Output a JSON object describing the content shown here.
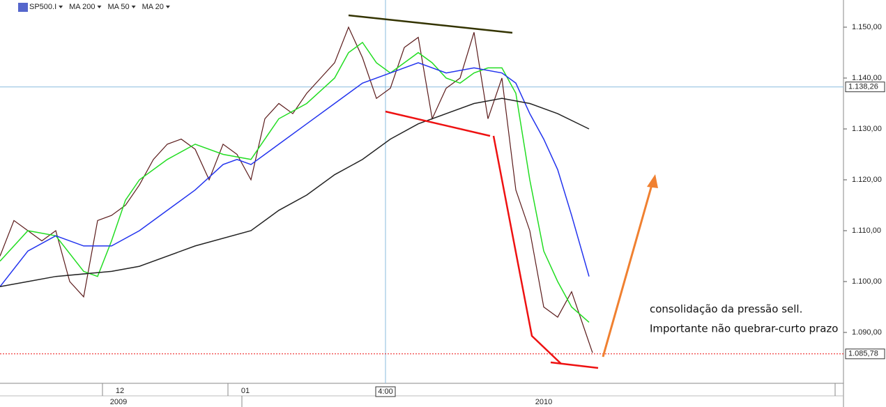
{
  "chart_data": {
    "type": "line",
    "legend": [
      "SP500.I",
      "MA 200",
      "MA 50",
      "MA 20"
    ],
    "series": [
      {
        "name": "SP500.I",
        "color": "#5a1a1a",
        "x": [
          0,
          2,
          4,
          6,
          8,
          10,
          12,
          14,
          16,
          18,
          20,
          22,
          24,
          26,
          28,
          30,
          32,
          34,
          36,
          38,
          40,
          42,
          44,
          46,
          48,
          50,
          52,
          54,
          56,
          58,
          60,
          62,
          64,
          66,
          68,
          70,
          72,
          74,
          76,
          78,
          80,
          82,
          84,
          85
        ],
        "values": [
          1105,
          1112,
          1110,
          1108,
          1110,
          1100,
          1097,
          1112,
          1113,
          1115,
          1119,
          1124,
          1127,
          1128,
          1126,
          1120,
          1127,
          1125,
          1120,
          1132,
          1135,
          1133,
          1137,
          1140,
          1143,
          1150,
          1144,
          1136,
          1138,
          1146,
          1148,
          1132,
          1138,
          1140,
          1149,
          1132,
          1140,
          1118,
          1110,
          1095,
          1093,
          1098,
          1090,
          1086
        ]
      },
      {
        "name": "MA 20",
        "color": "#22dd22",
        "x": [
          0,
          4,
          8,
          12,
          14,
          16,
          18,
          20,
          24,
          28,
          32,
          36,
          38,
          40,
          44,
          48,
          50,
          52,
          54,
          56,
          60,
          62,
          64,
          66,
          68,
          70,
          72,
          74,
          76,
          78,
          80,
          82,
          84.5
        ],
        "values": [
          1104,
          1110,
          1109,
          1102,
          1101,
          1108,
          1116,
          1120,
          1124,
          1127,
          1125,
          1124,
          1128,
          1132,
          1135,
          1140,
          1145,
          1147,
          1143,
          1141,
          1145,
          1143,
          1140,
          1139,
          1141,
          1142,
          1142,
          1137,
          1120,
          1106,
          1100,
          1095,
          1092
        ]
      },
      {
        "name": "MA 50",
        "color": "#2233ee",
        "x": [
          0,
          4,
          8,
          12,
          16,
          20,
          24,
          28,
          32,
          34,
          36,
          40,
          44,
          48,
          52,
          56,
          60,
          64,
          68,
          72,
          74,
          76,
          78,
          80,
          82,
          84.5
        ],
        "values": [
          1099,
          1106,
          1109,
          1107,
          1107,
          1110,
          1114,
          1118,
          1123,
          1124,
          1123,
          1127,
          1131,
          1135,
          1139,
          1141,
          1143,
          1141,
          1142,
          1141,
          1139,
          1133,
          1128,
          1122,
          1113,
          1101
        ]
      },
      {
        "name": "MA 200",
        "color": "#222222",
        "x": [
          0,
          4,
          8,
          16,
          20,
          28,
          36,
          40,
          44,
          48,
          52,
          56,
          60,
          64,
          68,
          72,
          76,
          80,
          84.5
        ],
        "values": [
          1099,
          1100,
          1101,
          1102,
          1103,
          1107,
          1110,
          1114,
          1117,
          1121,
          1124,
          1128,
          1131,
          1133,
          1135,
          1136,
          1135,
          1133,
          1130
        ]
      }
    ],
    "xlim": [
      0,
      121
    ],
    "xticks": [
      {
        "value": 17.2,
        "label": "12"
      },
      {
        "value": 35.2,
        "label": "01"
      }
    ],
    "x_period_labels": [
      {
        "value": 17,
        "label": "2009"
      },
      {
        "value": 78,
        "label": "2010"
      }
    ],
    "ylim": [
      1080,
      1155.34
    ],
    "yticks": [
      {
        "value": 1090,
        "label": "1.090,00"
      },
      {
        "value": 1100,
        "label": "1.100,00"
      },
      {
        "value": 1110,
        "label": "1.110,00"
      },
      {
        "value": 1120,
        "label": "1.120,00"
      },
      {
        "value": 1130,
        "label": "1.130,00"
      },
      {
        "value": 1140,
        "label": "1.140,00"
      },
      {
        "value": 1150,
        "label": "1.150,00"
      }
    ],
    "crosshair": {
      "x": {
        "value": 55.3,
        "label": "4:00"
      },
      "y": {
        "value": 1138.26,
        "label": "1.138,26"
      }
    },
    "last_price": {
      "value": 1085.78,
      "label": "1.085,78"
    },
    "annotations": [
      "consolidação da pressão sell.",
      "Importante não quebrar-curto prazo"
    ]
  }
}
